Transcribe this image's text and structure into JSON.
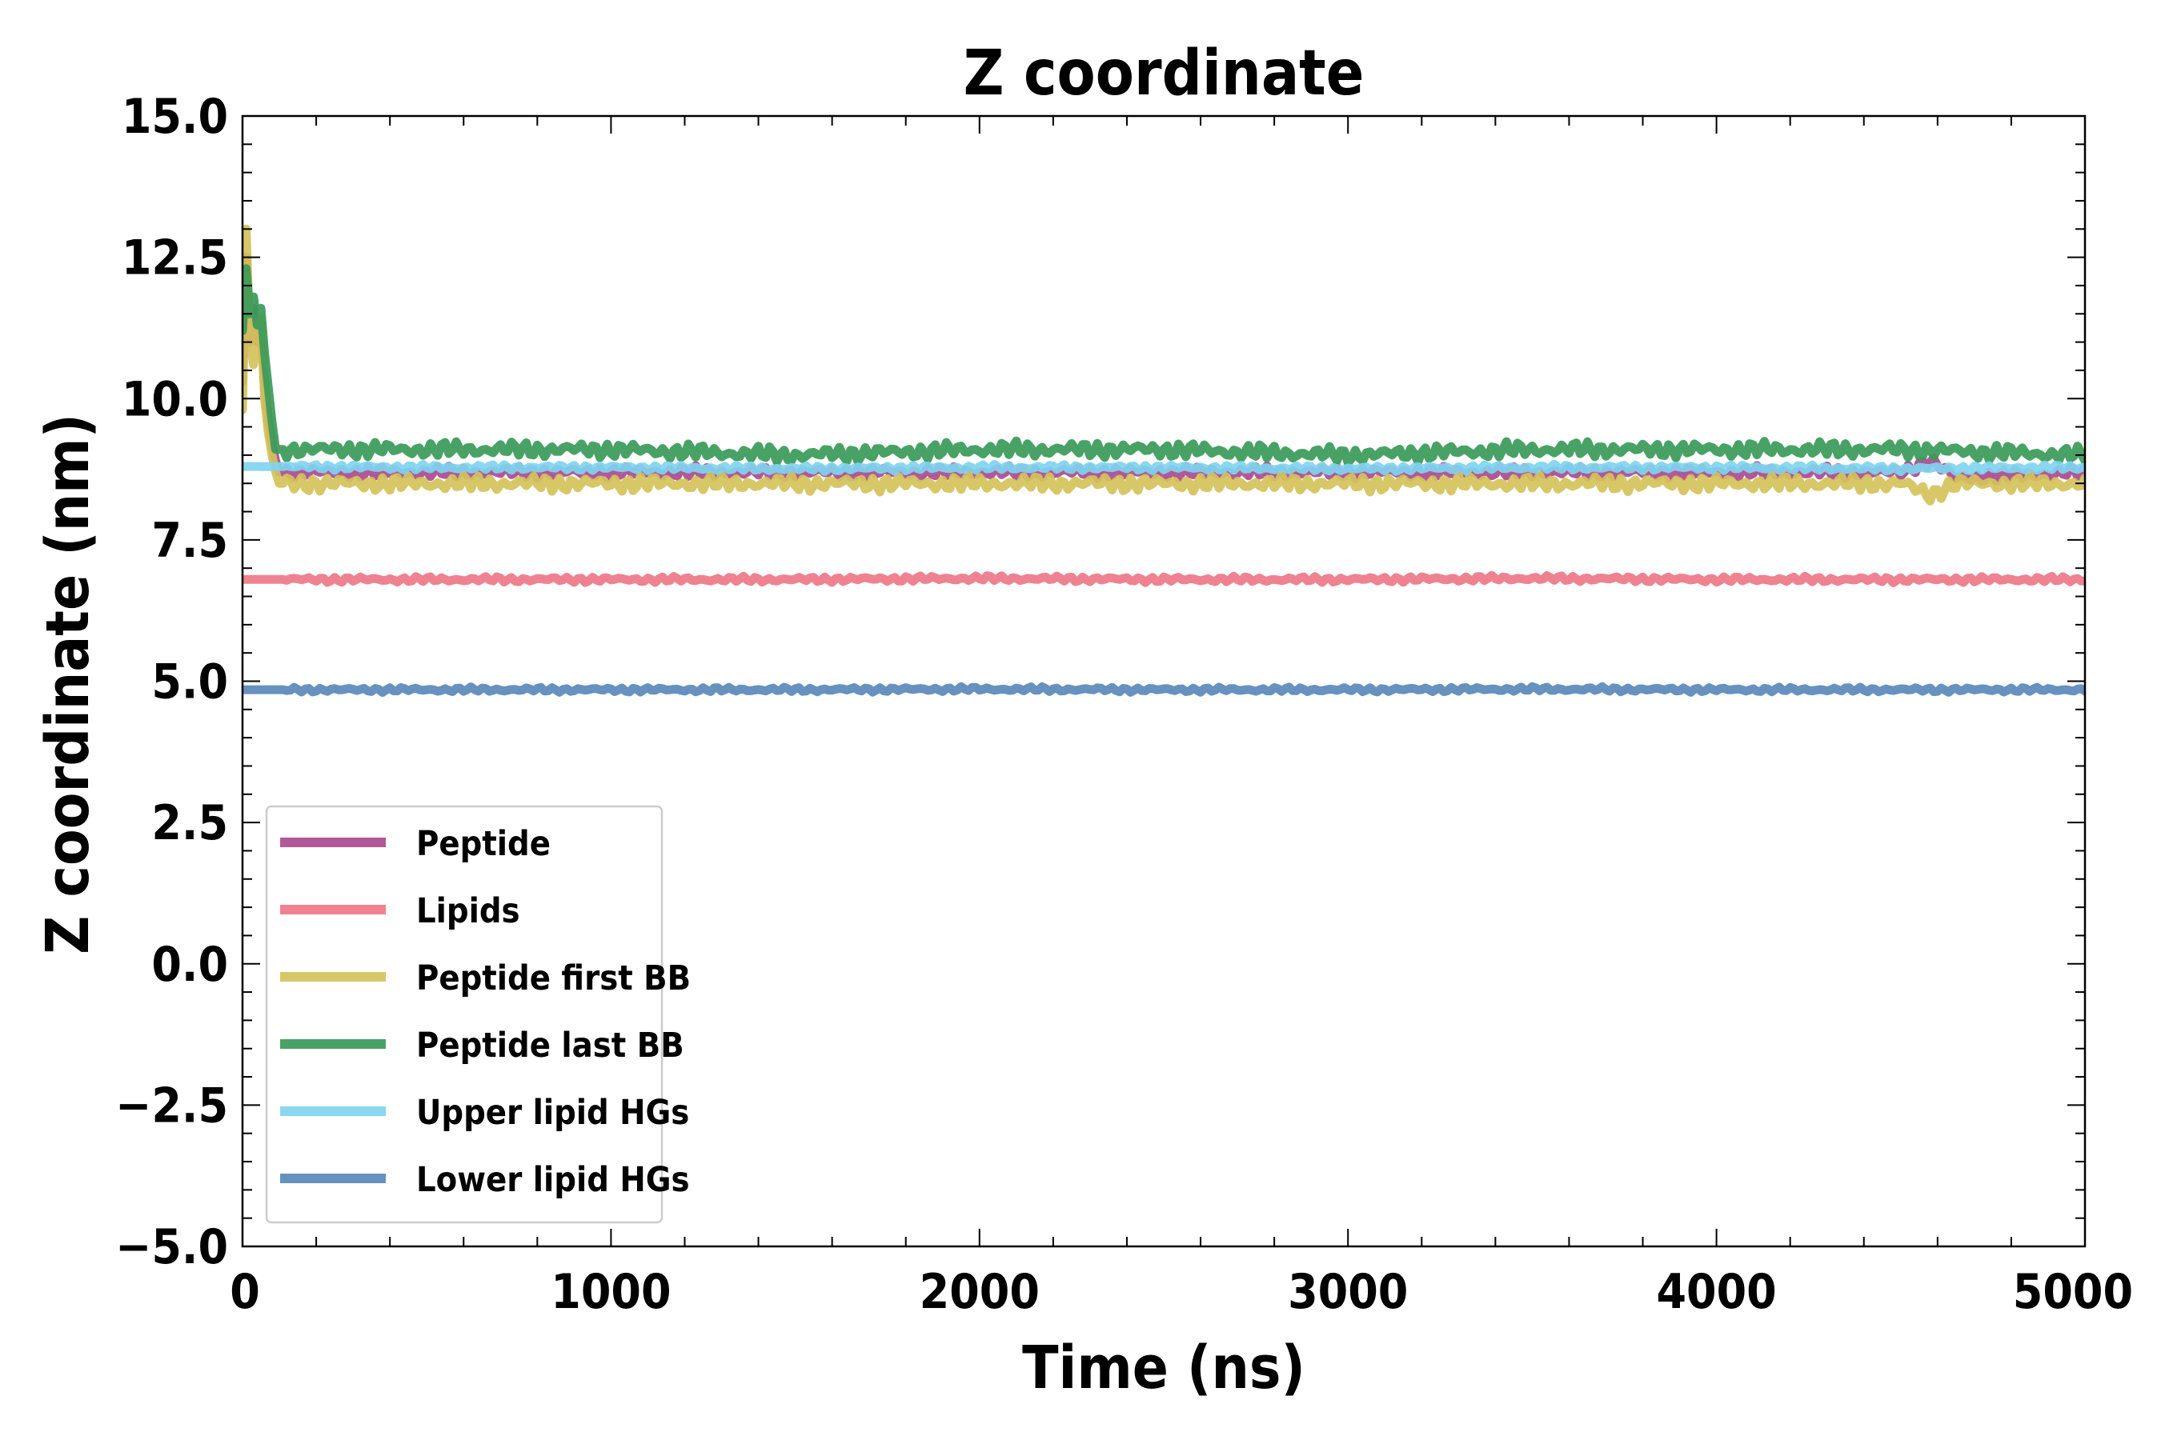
{
  "chart_data": {
    "type": "line",
    "title": "Z coordinate",
    "xlabel": "Time (ns)",
    "ylabel": "Z coordinate (nm)",
    "xlim": [
      0,
      5000
    ],
    "ylim": [
      -5.0,
      15.0
    ],
    "x_ticks": [
      "0",
      "1000",
      "2000",
      "3000",
      "4000",
      "5000"
    ],
    "y_ticks": [
      "−5.0",
      "−2.5",
      "0.0",
      "2.5",
      "5.0",
      "7.5",
      "10.0",
      "12.5",
      "15.0"
    ],
    "grid": false,
    "legend_position": "lower-left",
    "series": [
      {
        "name": "Peptide",
        "color": "#aa4a90",
        "x": [
          0,
          10,
          20,
          30,
          40,
          50,
          60,
          70,
          80,
          90,
          100,
          500,
          1000,
          1500,
          2000,
          2500,
          3000,
          3500,
          4000,
          4500,
          4580,
          4650,
          5000
        ],
        "y": [
          10.3,
          12.5,
          11.0,
          11.6,
          11.0,
          11.3,
          10.2,
          9.6,
          9.2,
          8.9,
          8.7,
          8.7,
          8.7,
          8.7,
          8.7,
          8.7,
          8.7,
          8.7,
          8.7,
          8.7,
          8.9,
          8.6,
          8.7
        ]
      },
      {
        "name": "Lipids",
        "color": "#ee7788",
        "x": [
          0,
          500,
          1000,
          1500,
          2000,
          2500,
          3000,
          3500,
          4000,
          4500,
          5000
        ],
        "y": [
          6.8,
          6.8,
          6.8,
          6.8,
          6.82,
          6.8,
          6.8,
          6.82,
          6.8,
          6.8,
          6.8
        ]
      },
      {
        "name": "Peptide first BB",
        "color": "#d4c25a",
        "x": [
          0,
          10,
          20,
          30,
          40,
          50,
          60,
          70,
          80,
          90,
          100,
          500,
          1000,
          1500,
          2000,
          2500,
          3000,
          3500,
          4000,
          4500,
          4580,
          4650,
          5000
        ],
        "y": [
          9.8,
          13.0,
          11.0,
          10.6,
          11.2,
          11.4,
          10.0,
          9.4,
          9.0,
          8.7,
          8.5,
          8.5,
          8.5,
          8.5,
          8.5,
          8.5,
          8.5,
          8.5,
          8.5,
          8.5,
          8.3,
          8.5,
          8.5
        ]
      },
      {
        "name": "Peptide last BB",
        "color": "#3a9a58",
        "x": [
          0,
          10,
          20,
          30,
          40,
          50,
          60,
          70,
          80,
          90,
          100,
          500,
          1000,
          1500,
          2000,
          2500,
          3000,
          3500,
          4000,
          4500,
          5000
        ],
        "y": [
          11.2,
          12.3,
          11.5,
          11.8,
          11.3,
          11.6,
          10.8,
          10.2,
          9.6,
          9.1,
          9.1,
          9.1,
          9.1,
          9.0,
          9.1,
          9.1,
          9.0,
          9.1,
          9.1,
          9.1,
          9.0
        ]
      },
      {
        "name": "Upper lipid HGs",
        "color": "#7fd4f0",
        "x": [
          0,
          500,
          1000,
          1500,
          2000,
          2500,
          3000,
          3500,
          4000,
          4500,
          5000
        ],
        "y": [
          8.8,
          8.78,
          8.78,
          8.76,
          8.78,
          8.78,
          8.76,
          8.78,
          8.78,
          8.76,
          8.78
        ]
      },
      {
        "name": "Lower lipid HGs",
        "color": "#5a88b8",
        "x": [
          0,
          500,
          1000,
          1500,
          2000,
          2500,
          3000,
          3500,
          4000,
          4500,
          5000
        ],
        "y": [
          4.85,
          4.85,
          4.85,
          4.85,
          4.86,
          4.85,
          4.85,
          4.86,
          4.85,
          4.85,
          4.85
        ]
      }
    ]
  }
}
